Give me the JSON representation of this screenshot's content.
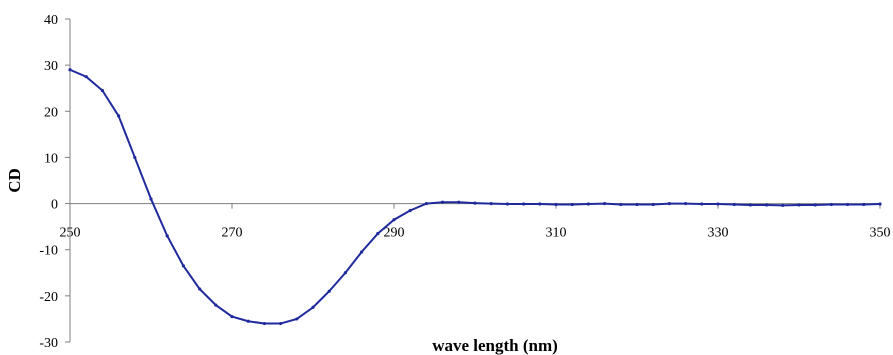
{
  "chart_data": {
    "type": "line",
    "xlabel": "wave length (nm)",
    "ylabel": "CD",
    "xlim": [
      250,
      350
    ],
    "ylim": [
      -30,
      40
    ],
    "x_ticks": [
      250,
      270,
      290,
      310,
      330,
      350
    ],
    "y_ticks": [
      -30,
      -20,
      -10,
      0,
      10,
      20,
      30,
      40
    ],
    "grid": false,
    "legend": "none",
    "series_color": "#1f2a9c",
    "series": [
      {
        "x": [
          250,
          252,
          254,
          256,
          258,
          260,
          262,
          264,
          266,
          268,
          270,
          272,
          274,
          276,
          278,
          280,
          282,
          284,
          286,
          288,
          290,
          292,
          294,
          296,
          298,
          300,
          302,
          304,
          306,
          308,
          310,
          312,
          314,
          316,
          318,
          320,
          322,
          324,
          326,
          328,
          330,
          332,
          334,
          336,
          338,
          340,
          342,
          344,
          346,
          348,
          350
        ],
        "y": [
          29,
          27.5,
          24.5,
          19,
          10,
          1,
          -7,
          -13.5,
          -18.5,
          -22,
          -24.5,
          -25.5,
          -26,
          -26,
          -25,
          -22.5,
          -19,
          -15,
          -10.5,
          -6.5,
          -3.5,
          -1.5,
          0,
          0.3,
          0.3,
          0.1,
          0,
          -0.1,
          -0.1,
          -0.1,
          -0.2,
          -0.2,
          -0.1,
          0,
          -0.2,
          -0.2,
          -0.2,
          0,
          0,
          -0.1,
          -0.1,
          -0.2,
          -0.3,
          -0.3,
          -0.4,
          -0.3,
          -0.3,
          -0.2,
          -0.2,
          -0.2,
          -0.1
        ]
      }
    ]
  }
}
